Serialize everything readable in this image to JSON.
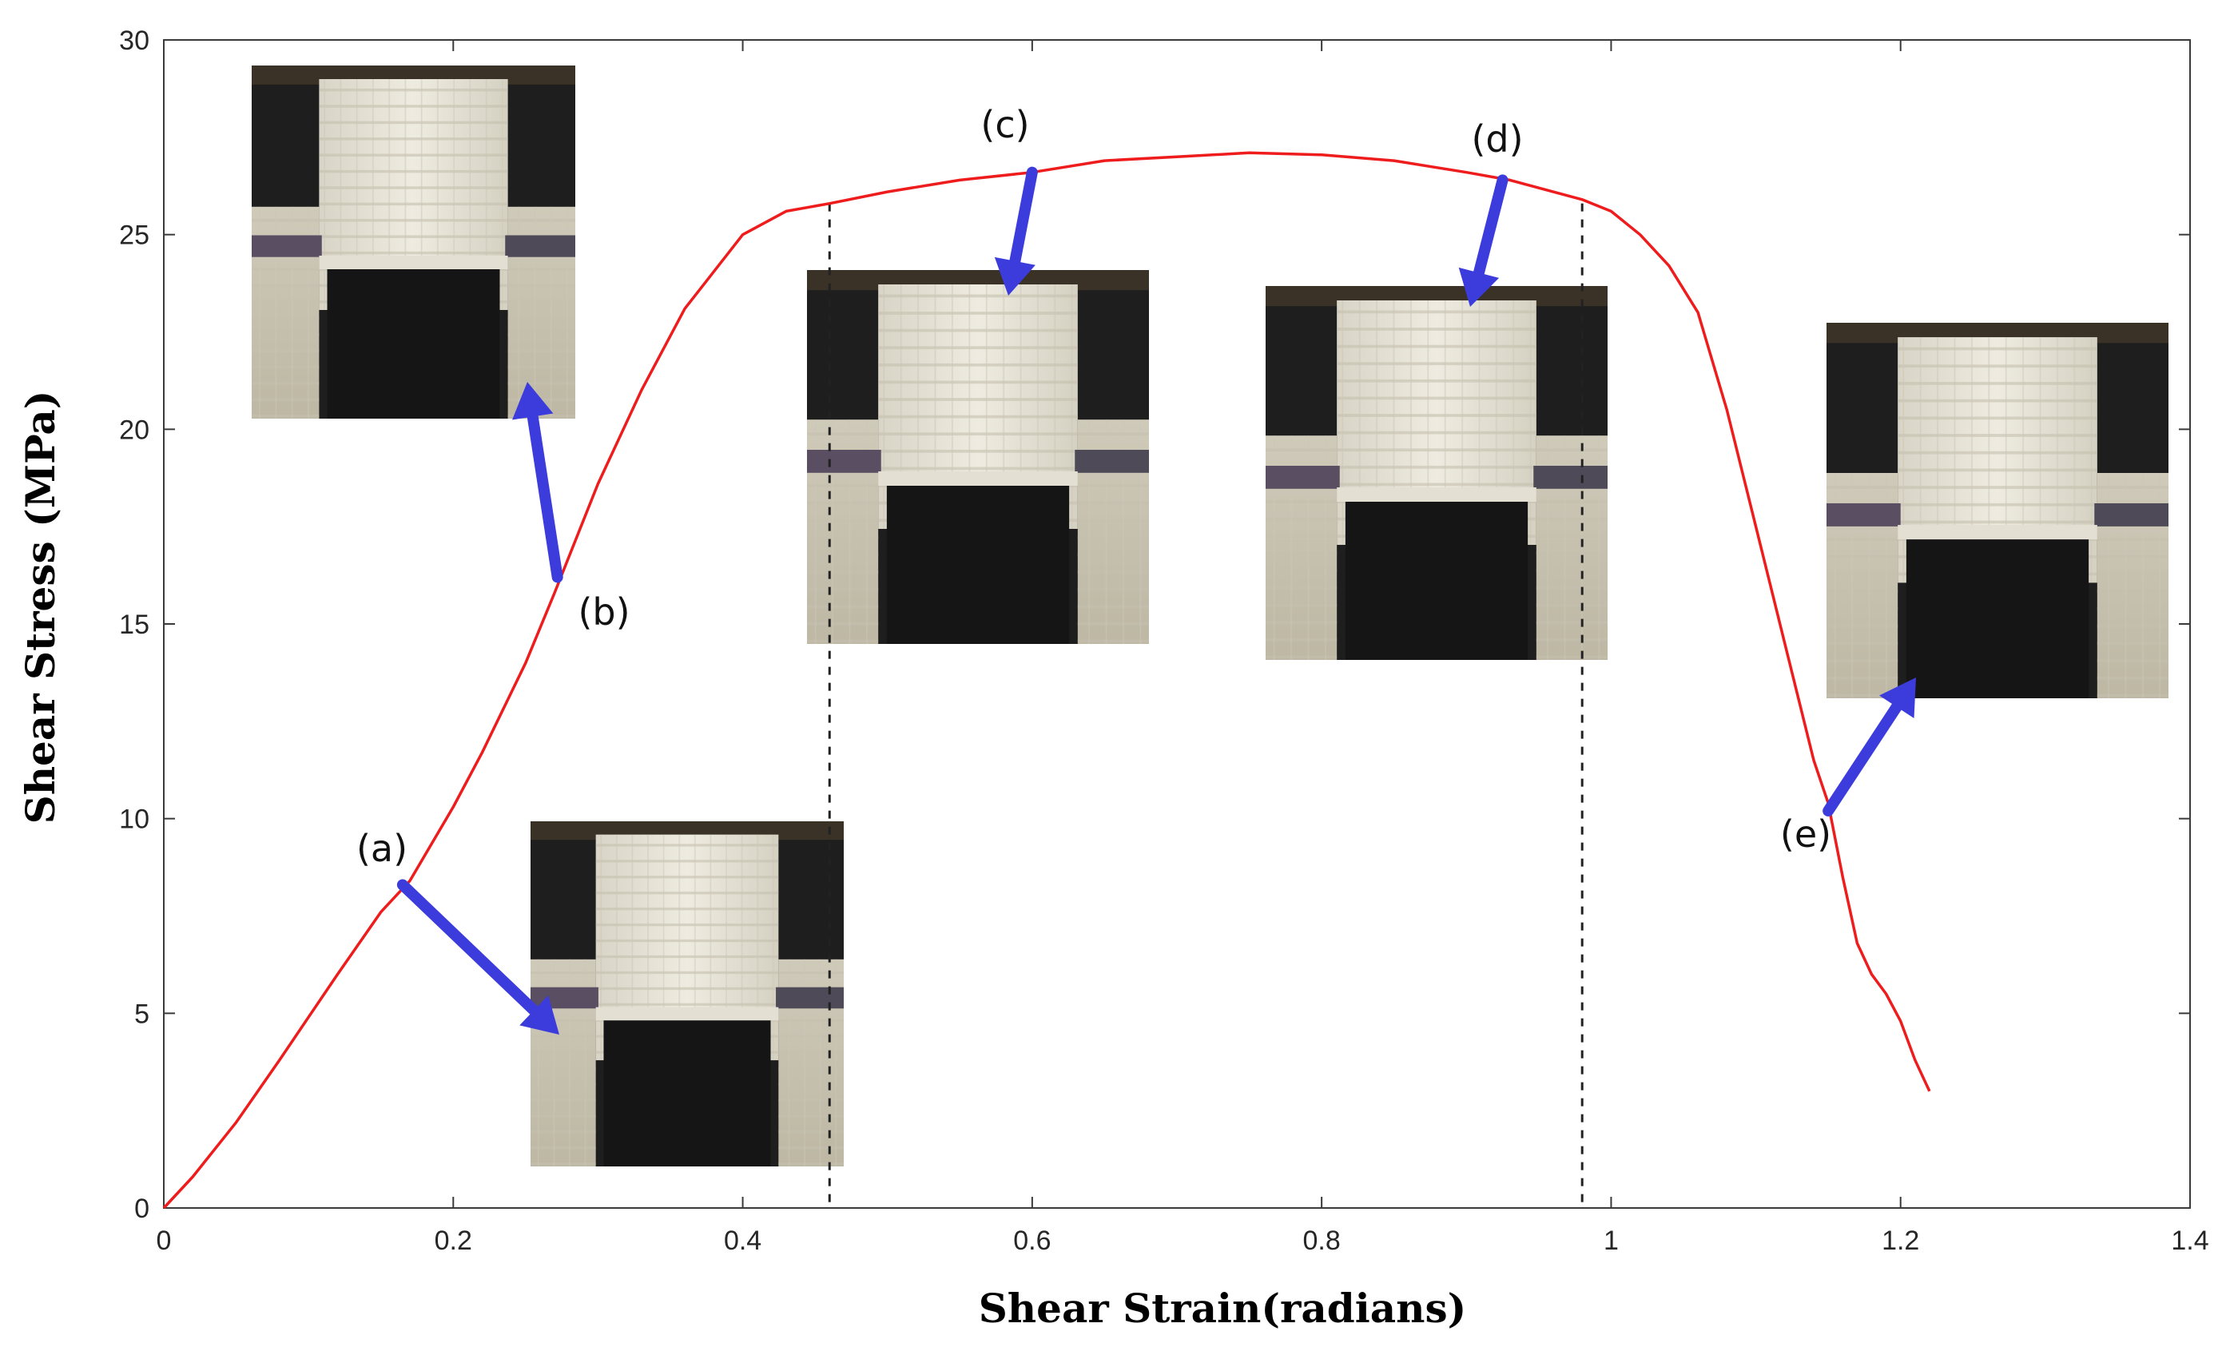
{
  "chart_data": {
    "type": "line",
    "xlabel": "Shear Strain(radians)",
    "ylabel": "Shear Stress (MPa)",
    "xlim": [
      0,
      1.4
    ],
    "ylim": [
      0,
      30
    ],
    "xticks": [
      0,
      0.2,
      0.4,
      0.6,
      0.8,
      1,
      1.2,
      1.4
    ],
    "yticks": [
      0,
      5,
      10,
      15,
      20,
      25,
      30
    ],
    "xtick_labels": [
      "0",
      "0.2",
      "0.4",
      "0.6",
      "0.8",
      "1",
      "1.2",
      "1.4"
    ],
    "ytick_labels": [
      "0",
      "5",
      "10",
      "15",
      "20",
      "25",
      "30"
    ],
    "grid": false,
    "series": [
      {
        "color": "#ee1c1c",
        "x": [
          0,
          0.02,
          0.05,
          0.08,
          0.1,
          0.12,
          0.15,
          0.17,
          0.2,
          0.22,
          0.25,
          0.27,
          0.3,
          0.33,
          0.36,
          0.4,
          0.43,
          0.46,
          0.5,
          0.55,
          0.6,
          0.65,
          0.7,
          0.75,
          0.8,
          0.85,
          0.9,
          0.93,
          0.95,
          0.98,
          1.0,
          1.02,
          1.04,
          1.06,
          1.08,
          1.1,
          1.12,
          1.14,
          1.15,
          1.16,
          1.17,
          1.18,
          1.19,
          1.2,
          1.21,
          1.22
        ],
        "y": [
          0,
          0.8,
          2.2,
          3.8,
          4.9,
          6.0,
          7.6,
          8.4,
          10.3,
          11.7,
          14.0,
          15.8,
          18.6,
          21.0,
          23.1,
          25.0,
          25.6,
          25.8,
          26.1,
          26.4,
          26.6,
          26.9,
          27.0,
          27.1,
          27.05,
          26.9,
          26.6,
          26.4,
          26.2,
          25.9,
          25.6,
          25.0,
          24.2,
          23.0,
          20.5,
          17.5,
          14.5,
          11.5,
          10.4,
          8.5,
          6.8,
          6.0,
          5.5,
          4.8,
          3.8,
          3.0
        ]
      }
    ],
    "reference_lines_x": [
      0.46,
      0.98
    ],
    "annotations": [
      {
        "label": "(a)",
        "x": 0.165,
        "y": 8.3
      },
      {
        "label": "(b)",
        "x": 0.272,
        "y": 16.2
      },
      {
        "label": "(c)",
        "x": 0.6,
        "y": 26.6
      },
      {
        "label": "(d)",
        "x": 0.925,
        "y": 26.4
      },
      {
        "label": "(e)",
        "x": 1.15,
        "y": 10.2
      }
    ],
    "arrow_color": "#3c3cdc"
  }
}
